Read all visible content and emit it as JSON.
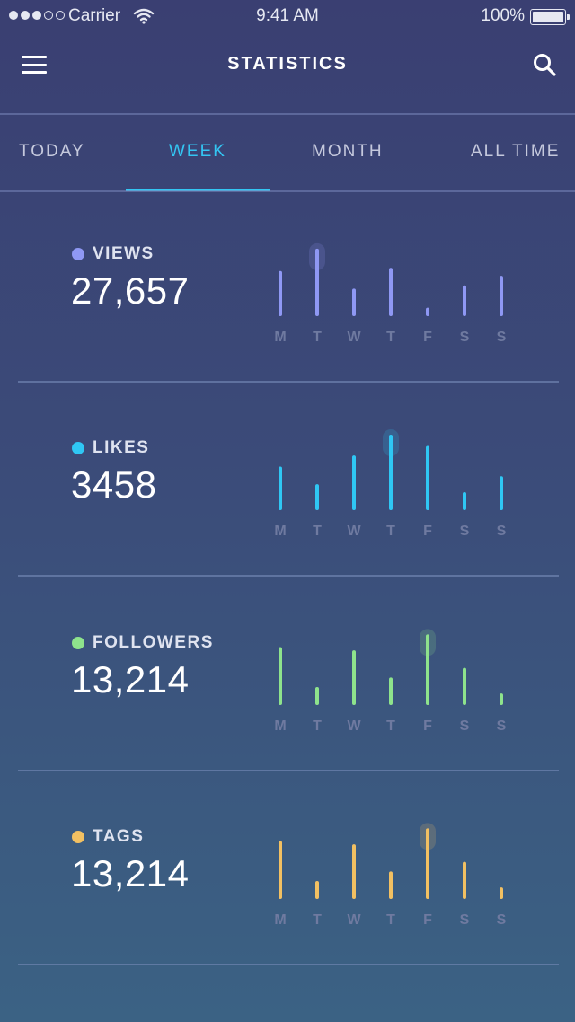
{
  "status_bar": {
    "signal_dots_filled": 3,
    "signal_dots_total": 5,
    "carrier": "Carrier",
    "time": "9:41 AM",
    "battery": "100%",
    "battery_level": 1.0
  },
  "nav": {
    "title": "STATISTICS",
    "menu_icon": "hamburger-menu-icon",
    "search_icon": "search-icon"
  },
  "tabs": [
    {
      "label": "TODAY",
      "active": false
    },
    {
      "label": "WEEK",
      "active": true
    },
    {
      "label": "MONTH",
      "active": false
    },
    {
      "label": "ALL TIME",
      "active": false
    }
  ],
  "colors": {
    "accent": "#33c6f3",
    "views": "#8f98f4",
    "likes": "#2fc7f4",
    "followers": "#8ee38c",
    "tags": "#f2c062"
  },
  "stats": [
    {
      "label": "VIEWS",
      "value": "27,657",
      "color": "#8f98f4",
      "days": [
        "M",
        "T",
        "W",
        "T",
        "F",
        "S",
        "S"
      ],
      "bars": [
        52,
        80,
        30,
        56,
        6,
        34,
        46
      ],
      "peak_index": 1
    },
    {
      "label": "LIKES",
      "value": "3458",
      "color": "#2fc7f4",
      "days": [
        "M",
        "T",
        "W",
        "T",
        "F",
        "S",
        "S"
      ],
      "bars": [
        50,
        28,
        64,
        90,
        76,
        18,
        38
      ],
      "peak_index": 3
    },
    {
      "label": "FOLLOWERS",
      "value": "13,214",
      "color": "#8ee38c",
      "days": [
        "M",
        "T",
        "W",
        "T",
        "F",
        "S",
        "S"
      ],
      "bars": [
        68,
        18,
        64,
        30,
        84,
        42,
        10
      ],
      "peak_index": 4
    },
    {
      "label": "TAGS",
      "value": "13,214",
      "color": "#f2c062",
      "days": [
        "M",
        "T",
        "W",
        "T",
        "F",
        "S",
        "S"
      ],
      "bars": [
        68,
        18,
        64,
        30,
        84,
        42,
        10
      ],
      "peak_index": 4
    }
  ]
}
